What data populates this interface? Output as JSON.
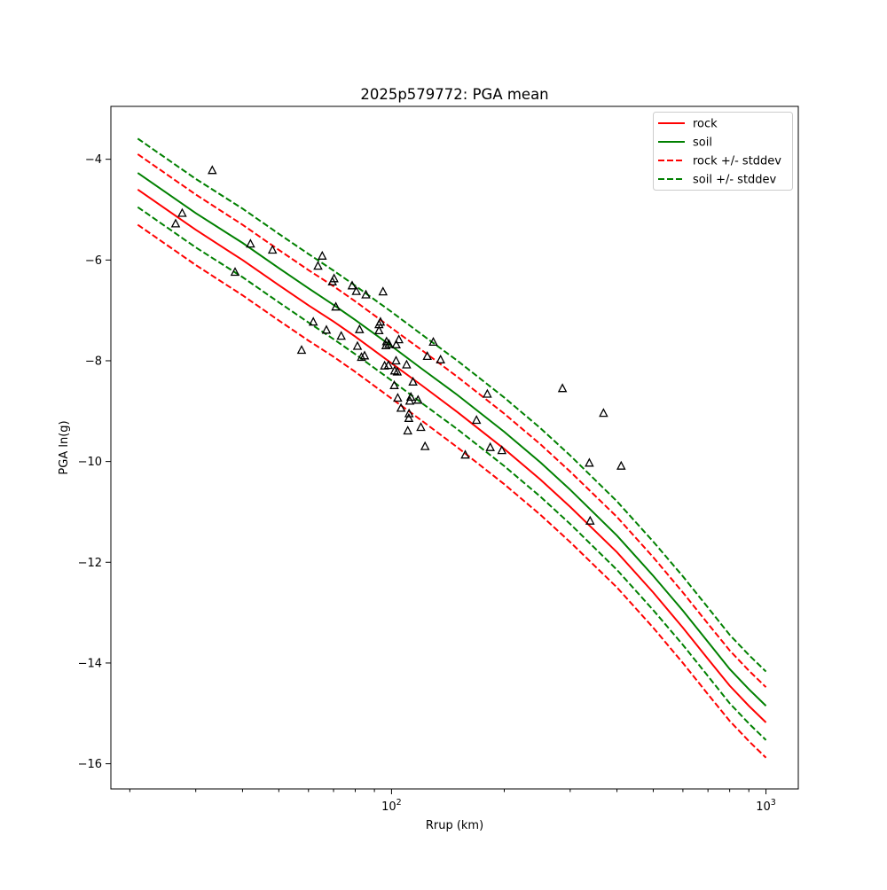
{
  "chart_data": {
    "type": "line",
    "title": "2025p579772: PGA mean",
    "xlabel": "Rrup (km)",
    "ylabel": "PGA ln(g)",
    "xscale": "log",
    "xlim": [
      17.8,
      1220
    ],
    "ylim": [
      -16.5,
      -2.95
    ],
    "xticks": [
      {
        "value": 100,
        "base": "10",
        "exp": "2"
      },
      {
        "value": 1000,
        "base": "10",
        "exp": "3"
      }
    ],
    "yticks": [
      -4,
      -6,
      -8,
      -10,
      -12,
      -14,
      -16
    ],
    "ytick_labels": [
      "−4",
      "−6",
      "−8",
      "−10",
      "−12",
      "−14",
      "−16"
    ],
    "grid": false,
    "legend_position": "top-right",
    "colors": {
      "rock": "#ff0000",
      "soil": "#008000",
      "observed": "#000000"
    },
    "x": [
      21,
      30,
      40,
      50,
      60,
      70,
      80,
      100,
      120,
      150,
      200,
      250,
      300,
      400,
      500,
      600,
      700,
      800,
      900,
      1000
    ],
    "series": [
      {
        "name": "rock",
        "style": "solid",
        "color": "#ff0000",
        "in_legend": true,
        "values": [
          -4.6,
          -5.4,
          -6.0,
          -6.5,
          -6.9,
          -7.22,
          -7.52,
          -8.05,
          -8.48,
          -9.02,
          -9.75,
          -10.36,
          -10.9,
          -11.8,
          -12.6,
          -13.3,
          -13.92,
          -14.45,
          -14.85,
          -15.18
        ]
      },
      {
        "name": "soil",
        "style": "solid",
        "color": "#008000",
        "in_legend": true,
        "values": [
          -4.27,
          -5.07,
          -5.66,
          -6.16,
          -6.56,
          -6.89,
          -7.19,
          -7.71,
          -8.15,
          -8.68,
          -9.41,
          -10.02,
          -10.56,
          -11.47,
          -12.27,
          -12.96,
          -13.58,
          -14.12,
          -14.52,
          -14.85
        ]
      },
      {
        "name": "rock +/- stddev",
        "style": "dashed",
        "color": "#ff0000",
        "in_legend": true,
        "values": [
          -3.9,
          -4.7,
          -5.3,
          -5.8,
          -6.2,
          -6.52,
          -6.82,
          -7.35,
          -7.78,
          -8.32,
          -9.05,
          -9.66,
          -10.2,
          -11.1,
          -11.9,
          -12.6,
          -13.22,
          -13.75,
          -14.15,
          -14.48
        ]
      },
      {
        "name": "",
        "style": "dashed",
        "color": "#ff0000",
        "in_legend": false,
        "values": [
          -5.3,
          -6.1,
          -6.7,
          -7.2,
          -7.6,
          -7.92,
          -8.22,
          -8.75,
          -9.18,
          -9.72,
          -10.45,
          -11.06,
          -11.6,
          -12.5,
          -13.3,
          -14.0,
          -14.62,
          -15.15,
          -15.55,
          -15.88
        ]
      },
      {
        "name": "soil +/- stddev",
        "style": "dashed",
        "color": "#008000",
        "in_legend": true,
        "values": [
          -3.59,
          -4.39,
          -4.98,
          -5.48,
          -5.88,
          -6.21,
          -6.51,
          -7.03,
          -7.47,
          -8.0,
          -8.73,
          -9.34,
          -9.88,
          -10.79,
          -11.59,
          -12.28,
          -12.9,
          -13.44,
          -13.84,
          -14.17
        ]
      },
      {
        "name": "",
        "style": "dashed",
        "color": "#008000",
        "in_legend": false,
        "values": [
          -4.95,
          -5.75,
          -6.34,
          -6.84,
          -7.24,
          -7.57,
          -7.87,
          -8.39,
          -8.83,
          -9.36,
          -10.09,
          -10.7,
          -11.24,
          -12.15,
          -12.95,
          -13.64,
          -14.26,
          -14.8,
          -15.2,
          -15.53
        ]
      }
    ],
    "observations": [
      [
        26.5,
        -5.28
      ],
      [
        27.6,
        -5.07
      ],
      [
        33.2,
        -4.22
      ],
      [
        38.2,
        -6.24
      ],
      [
        42.0,
        -5.68
      ],
      [
        48.1,
        -5.8
      ],
      [
        57.5,
        -7.79
      ],
      [
        61.8,
        -7.23
      ],
      [
        63.6,
        -6.12
      ],
      [
        65.3,
        -5.92
      ],
      [
        67.0,
        -7.39
      ],
      [
        69.5,
        -6.43
      ],
      [
        70.2,
        -6.37
      ],
      [
        71.0,
        -6.93
      ],
      [
        73.4,
        -7.51
      ],
      [
        78.5,
        -6.51
      ],
      [
        80.5,
        -6.62
      ],
      [
        81.1,
        -7.71
      ],
      [
        82.1,
        -7.38
      ],
      [
        83.1,
        -7.93
      ],
      [
        84.7,
        -7.9
      ],
      [
        85.4,
        -6.69
      ],
      [
        92.6,
        -7.28
      ],
      [
        92.6,
        -7.4
      ],
      [
        93.4,
        -7.23
      ],
      [
        94.9,
        -6.63
      ],
      [
        95.8,
        -8.1
      ],
      [
        96.6,
        -7.7
      ],
      [
        97.0,
        -7.62
      ],
      [
        98.1,
        -8.09
      ],
      [
        98.4,
        -7.67
      ],
      [
        101.7,
        -8.49
      ],
      [
        101.9,
        -8.2
      ],
      [
        102.8,
        -8.0
      ],
      [
        102.9,
        -7.68
      ],
      [
        103.6,
        -8.22
      ],
      [
        103.9,
        -8.74
      ],
      [
        104.6,
        -7.58
      ],
      [
        106.0,
        -8.94
      ],
      [
        109.7,
        -8.08
      ],
      [
        110.5,
        -9.39
      ],
      [
        111.2,
        -9.14
      ],
      [
        111.4,
        -9.05
      ],
      [
        111.9,
        -8.8
      ],
      [
        112.6,
        -8.72
      ],
      [
        114.1,
        -8.42
      ],
      [
        117.7,
        -8.78
      ],
      [
        119.8,
        -9.32
      ],
      [
        122.9,
        -9.7
      ],
      [
        124.6,
        -7.91
      ],
      [
        129.3,
        -7.63
      ],
      [
        135.2,
        -7.98
      ],
      [
        157.3,
        -9.87
      ],
      [
        168.6,
        -9.18
      ],
      [
        180.2,
        -8.66
      ],
      [
        183.5,
        -9.72
      ],
      [
        197.1,
        -9.78
      ],
      [
        286.0,
        -8.55
      ],
      [
        337.4,
        -10.03
      ],
      [
        339.2,
        -11.18
      ],
      [
        368.3,
        -9.04
      ],
      [
        410.5,
        -10.09
      ]
    ]
  }
}
